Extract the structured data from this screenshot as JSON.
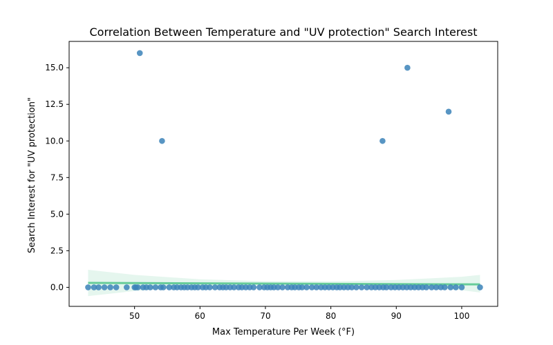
{
  "chart_data": {
    "type": "scatter",
    "title": "Correlation Between Temperature and \"UV protection\" Search Interest",
    "xlabel": "Max Temperature Per Week (°F)",
    "ylabel": "Search Interest for \"UV protection\"",
    "xlim": [
      40,
      105.5
    ],
    "ylim": [
      -1.3,
      16.8
    ],
    "xticks": [
      50,
      60,
      70,
      80,
      90,
      100
    ],
    "yticks": [
      0.0,
      2.5,
      5.0,
      7.5,
      10.0,
      12.5,
      15.0
    ],
    "ytick_labels": [
      "0.0",
      "2.5",
      "5.0",
      "7.5",
      "10.0",
      "12.5",
      "15.0"
    ],
    "grid": false,
    "legend": "none",
    "point_color": "#3b82b8",
    "regression_line_color": "#66cc99",
    "confidence_band_color": "#d4f0e2",
    "regression_line": {
      "x": [
        42.9,
        102.8
      ],
      "y": [
        0.3,
        0.2
      ]
    },
    "confidence_band": {
      "x": [
        42.9,
        50,
        60,
        70,
        80,
        90,
        100,
        102.8
      ],
      "upper": [
        1.2,
        0.85,
        0.55,
        0.42,
        0.4,
        0.5,
        0.72,
        0.85
      ],
      "lower": [
        -0.6,
        -0.25,
        0.05,
        0.18,
        0.2,
        0.1,
        -0.2,
        -0.35
      ]
    },
    "points": {
      "x": [
        42.9,
        43.8,
        44.5,
        45.4,
        46.3,
        47.2,
        48.8,
        50.0,
        50.2,
        50.5,
        51.3,
        51.8,
        52.4,
        53.2,
        54.0,
        54.4,
        55.3,
        56.0,
        56.5,
        57.1,
        57.6,
        58.1,
        58.7,
        59.2,
        59.7,
        60.4,
        60.9,
        61.5,
        62.3,
        63.0,
        63.5,
        64.0,
        64.6,
        65.2,
        65.9,
        66.4,
        67.0,
        67.6,
        68.2,
        69.1,
        69.8,
        70.3,
        70.8,
        71.3,
        71.9,
        72.6,
        73.4,
        74.0,
        74.5,
        75.1,
        75.6,
        76.3,
        77.1,
        77.8,
        78.5,
        79.1,
        79.7,
        80.3,
        80.9,
        81.4,
        82.0,
        82.6,
        83.2,
        83.9,
        84.7,
        85.5,
        86.2,
        86.8,
        87.4,
        88.0,
        88.5,
        89.2,
        89.8,
        90.4,
        91.0,
        91.6,
        92.2,
        92.8,
        93.4,
        94.0,
        94.6,
        95.4,
        96.1,
        96.8,
        97.4,
        98.3,
        99.1,
        100.0,
        102.8,
        50.8,
        54.2,
        87.9,
        91.7,
        98.0
      ],
      "y": [
        0,
        0,
        0,
        0,
        0,
        0,
        0,
        0,
        0,
        0,
        0,
        0,
        0,
        0,
        0,
        0,
        0,
        0,
        0,
        0,
        0,
        0,
        0,
        0,
        0,
        0,
        0,
        0,
        0,
        0,
        0,
        0,
        0,
        0,
        0,
        0,
        0,
        0,
        0,
        0,
        0,
        0,
        0,
        0,
        0,
        0,
        0,
        0,
        0,
        0,
        0,
        0,
        0,
        0,
        0,
        0,
        0,
        0,
        0,
        0,
        0,
        0,
        0,
        0,
        0,
        0,
        0,
        0,
        0,
        0,
        0,
        0,
        0,
        0,
        0,
        0,
        0,
        0,
        0,
        0,
        0,
        0,
        0,
        0,
        0,
        0,
        0,
        0,
        0,
        16,
        10,
        10,
        15,
        12
      ]
    }
  }
}
